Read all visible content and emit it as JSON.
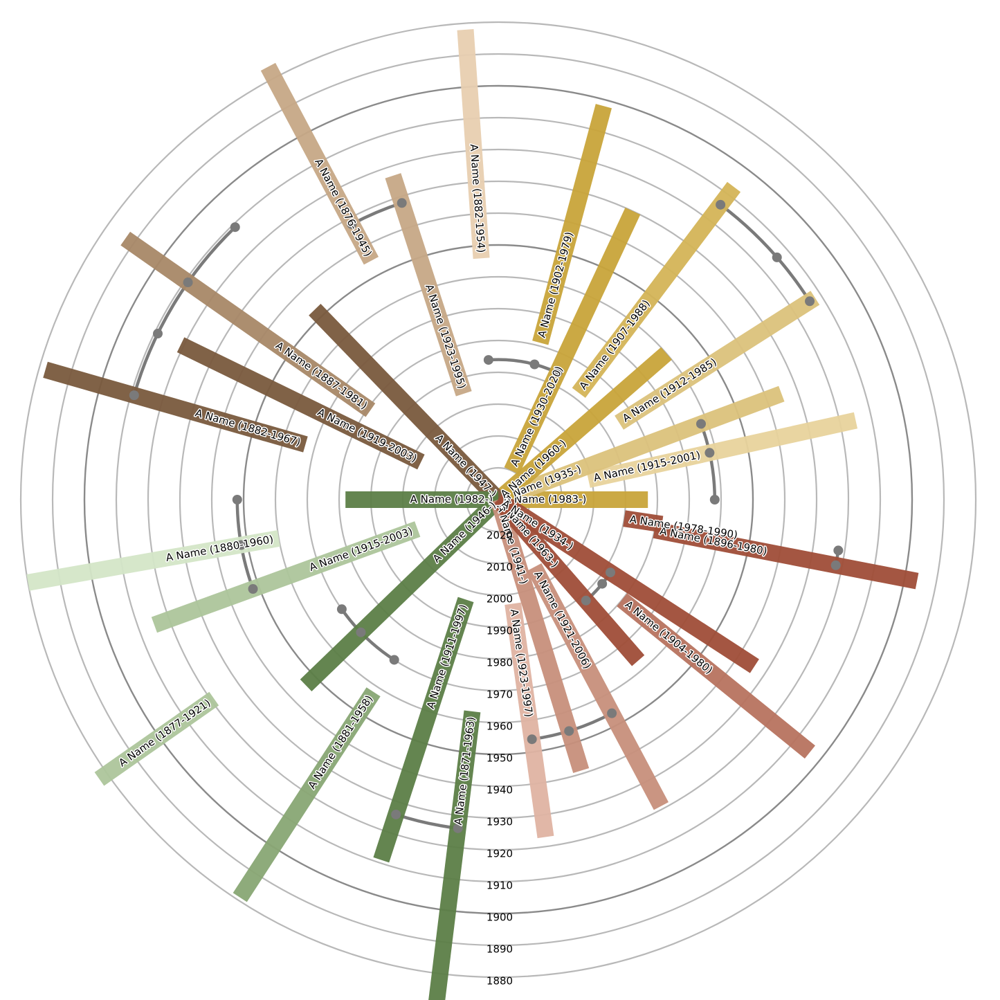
{
  "chart_data": {
    "type": "radial-timeline",
    "title": "",
    "radial_axis": {
      "ticks": [
        2020,
        2010,
        2000,
        1990,
        1980,
        1970,
        1960,
        1950,
        1940,
        1930,
        1920,
        1910,
        1900,
        1890,
        1880
      ],
      "center_year": 2030,
      "outer_year": 1880,
      "dark_rings": [
        1900,
        1950
      ]
    },
    "groups": [
      {
        "id": "g0",
        "members": [
          0,
          1,
          2,
          3,
          4,
          5
        ]
      },
      {
        "id": "g1",
        "members": [
          6,
          7,
          8,
          9,
          10
        ]
      },
      {
        "id": "g2",
        "members": [
          11,
          12,
          13,
          14
        ]
      },
      {
        "id": "g3",
        "members": [
          15,
          16,
          17,
          18,
          19,
          20
        ]
      },
      {
        "id": "g4",
        "members": [
          21,
          22,
          23,
          24,
          25
        ]
      },
      {
        "id": "g5",
        "members": [
          26,
          27,
          28,
          29,
          30
        ]
      }
    ],
    "connectors": [
      {
        "group": "g0",
        "members": [
          0,
          1,
          2
        ],
        "parent_year": 1962
      },
      {
        "group": "g0",
        "members": [
          3,
          4,
          5
        ],
        "parent_year": 1914
      },
      {
        "group": "g1",
        "members": [
          6,
          7,
          8
        ],
        "parent_year": 1986
      },
      {
        "group": "g1",
        "members": [
          9,
          10
        ],
        "parent_year": 1932
      },
      {
        "group": "g2",
        "members": [
          11,
          12,
          13,
          14
        ],
        "parent_year": 1911
      },
      {
        "group": "g3",
        "members": [
          15,
          16,
          17
        ],
        "parent_year": 1948
      },
      {
        "group": "g3",
        "members": [
          18,
          19,
          20
        ],
        "parent_year": 1970
      },
      {
        "group": "g4",
        "members": [
          21,
          22
        ],
        "parent_year": 1926
      },
      {
        "group": "g4",
        "members": [
          23,
          24,
          25
        ],
        "parent_year": 1954
      },
      {
        "group": "g5",
        "members": [
          26,
          27,
          28
        ],
        "parent_year": 1988
      },
      {
        "group": "g5",
        "members": [
          29,
          30
        ],
        "parent_year": 1922
      }
    ],
    "bars": [
      {
        "label": "A Name (1983-)",
        "start": 1983,
        "end": 2030,
        "angle": 0.0,
        "color": "#c9a53a"
      },
      {
        "label": "A Name (1915-2001)",
        "start": 1915,
        "end": 2001,
        "angle": -12.5,
        "color": "#e8d39c"
      },
      {
        "label": "A Name (1935-)",
        "start": 1935,
        "end": 2030,
        "angle": -20.5,
        "color": "#dcc27c"
      },
      {
        "label": "A Name (1912-1985)",
        "start": 1912,
        "end": 1985,
        "angle": -32.5,
        "color": "#dcc27c"
      },
      {
        "label": "A Name (1960-)",
        "start": 1960,
        "end": 2030,
        "angle": -41.0,
        "color": "#c9a53a"
      },
      {
        "label": "A Name (1907-1988)",
        "start": 1907,
        "end": 1988,
        "angle": -53.0,
        "color": "#d4b558"
      },
      {
        "label": "A Name (1930-2020)",
        "start": 1930,
        "end": 2020,
        "angle": -65.0,
        "color": "#c9a53a"
      },
      {
        "label": "A Name (1902-1979)",
        "start": 1902,
        "end": 1979,
        "angle": -75.0,
        "color": "#c9a53a"
      },
      {
        "label": "A Name (1882-1954)",
        "start": 1882,
        "end": 1954,
        "angle": -94.0,
        "color": "#e8cfb1"
      },
      {
        "label": "A Name (1923-1995)",
        "start": 1923,
        "end": 1995,
        "angle": -108.0,
        "color": "#c7a886"
      },
      {
        "label": "A Name (1876-1945)",
        "start": 1876,
        "end": 1945,
        "angle": -118.0,
        "color": "#c7a886"
      },
      {
        "label": "A Name (1947-)",
        "start": 1947,
        "end": 2030,
        "angle": -134.0,
        "color": "#7a5a3e"
      },
      {
        "label": "A Name (1887-1981)",
        "start": 1887,
        "end": 1981,
        "angle": -145.0,
        "color": "#a88868"
      },
      {
        "label": "A Name (1919-2003)",
        "start": 1919,
        "end": 2003,
        "angle": -154.0,
        "color": "#7a5a3e"
      },
      {
        "label": "A Name (1882-1967)",
        "start": 1882,
        "end": 1967,
        "angle": -164.0,
        "color": "#7a5a3e"
      },
      {
        "label": "A Name (1982-)",
        "start": 1982,
        "end": 2030,
        "angle": -180.0,
        "color": "#5c7f47"
      },
      {
        "label": "A Name (1915-2003)",
        "start": 1915,
        "end": 2003,
        "angle": 160.0,
        "color": "#adc69b"
      },
      {
        "label": "A Name (1880-1960)",
        "start": 1880,
        "end": 1960,
        "angle": 170.0,
        "color": "#d4e6c8"
      },
      {
        "label": "A Name (1877-1921)",
        "start": 1877,
        "end": 1921,
        "angle": 145.0,
        "color": "#adc69b"
      },
      {
        "label": "A Name (1946-)",
        "start": 1946,
        "end": 2030,
        "angle": 136.0,
        "color": "#5c7f47"
      },
      {
        "label": "A Name (1881-1958)",
        "start": 1881,
        "end": 1958,
        "angle": 123.0,
        "color": "#89a774"
      },
      {
        "label": "A Name (1911-1997)",
        "start": 1911,
        "end": 1997,
        "angle": 108.0,
        "color": "#5c7f47"
      },
      {
        "label": "A Name (1871-1963)",
        "start": 1871,
        "end": 1963,
        "angle": 97.0,
        "color": "#5c7f47"
      },
      {
        "label": "A Name (1923-1997)",
        "start": 1923,
        "end": 1997,
        "angle": 82.0,
        "color": "#e0b4a3"
      },
      {
        "label": "A Name (1941-)",
        "start": 1941,
        "end": 2030,
        "angle": 73.0,
        "color": "#c8907c"
      },
      {
        "label": "A Name (1921-2006)",
        "start": 1921,
        "end": 2006,
        "angle": 62.0,
        "color": "#c8907c"
      },
      {
        "label": "A Name (1963-)",
        "start": 1963,
        "end": 2030,
        "angle": 49.0,
        "color": "#a04e38"
      },
      {
        "label": "A Name (1934-)",
        "start": 1934,
        "end": 2030,
        "angle": 33.0,
        "color": "#a04e38"
      },
      {
        "label": "A Name (1904-1980)",
        "start": 1904,
        "end": 1980,
        "angle": 39.0,
        "color": "#b8735f"
      },
      {
        "label": "A Name (1896-1980)",
        "start": 1896,
        "end": 1980,
        "angle": 11.0,
        "color": "#a04e38"
      },
      {
        "label": "A Name (1978-1990)",
        "start": 1978,
        "end": 1990,
        "angle": 8.5,
        "color": "#a04e38"
      }
    ]
  }
}
